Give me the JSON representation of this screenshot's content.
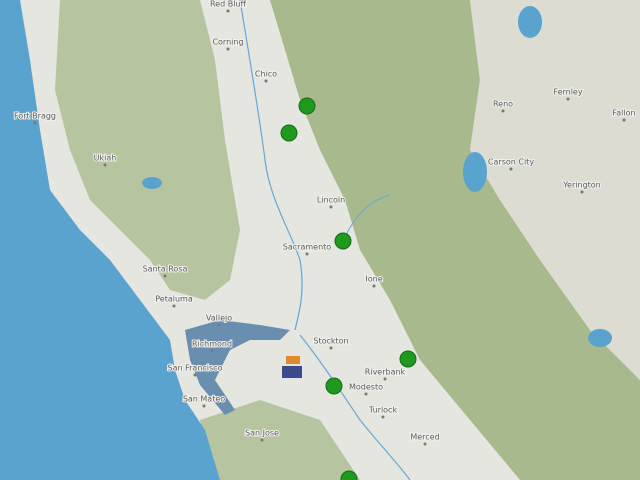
{
  "map": {
    "labels": [
      {
        "text": "Red Bluff"
      },
      {
        "text": "Corning"
      },
      {
        "text": "Chico"
      },
      {
        "text": "Fort Bragg"
      },
      {
        "text": "Ukiah"
      },
      {
        "text": "Reno"
      },
      {
        "text": "Fernley"
      },
      {
        "text": "Fallon"
      },
      {
        "text": "Carson City"
      },
      {
        "text": "Yerington"
      },
      {
        "text": "Lincoln"
      },
      {
        "text": "Sacramento"
      },
      {
        "text": "Ione"
      },
      {
        "text": "Santa Rosa"
      },
      {
        "text": "Petaluma"
      },
      {
        "text": "Vallejo"
      },
      {
        "text": "Richmond"
      },
      {
        "text": "San Francisco"
      },
      {
        "text": "San Mateo"
      },
      {
        "text": "Stockton"
      },
      {
        "text": "Riverbank"
      },
      {
        "text": "Modesto"
      },
      {
        "text": "Turlock"
      },
      {
        "text": "San Jose"
      },
      {
        "text": "Merced"
      }
    ]
  }
}
